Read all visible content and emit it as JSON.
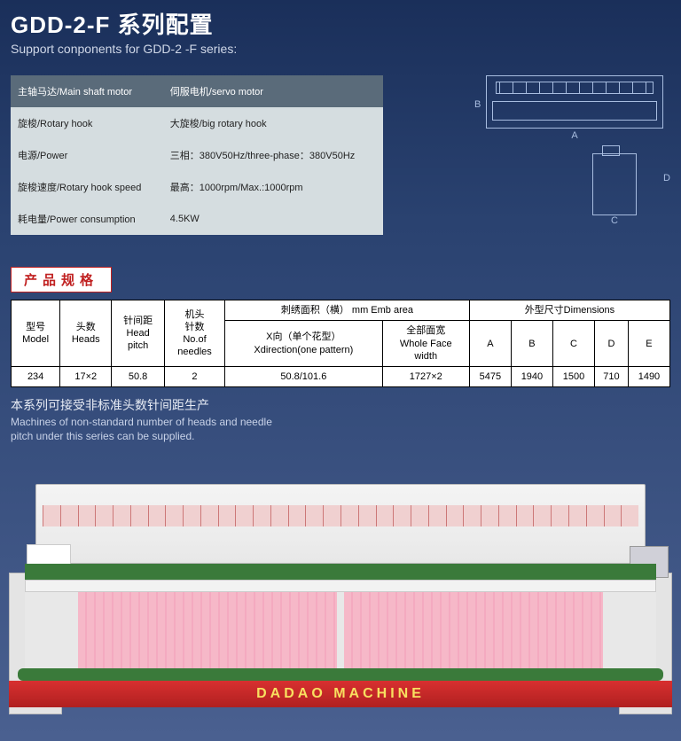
{
  "header": {
    "title_cn": "GDD-2-F 系列配置",
    "title_en": "Support  conponents for GDD-2 -F series:"
  },
  "spec": {
    "header_left": "主轴马达/Main shaft motor",
    "header_right": "伺服电机/servo motor",
    "rows": [
      {
        "l": "旋梭/Rotary hook",
        "r": "大旋梭/big rotary hook"
      },
      {
        "l": "电源/Power",
        "r": "三相：380V50Hz/three-phase：380V50Hz"
      },
      {
        "l": "旋梭速度/Rotary hook speed",
        "r": "最高：1000rpm/Max.:1000rpm"
      },
      {
        "l": "耗电量/Power consumption",
        "r": "4.5KW"
      }
    ]
  },
  "diagram": {
    "A": "A",
    "B": "B",
    "C": "C",
    "D": "D"
  },
  "section_label": "产品规格",
  "table": {
    "h_model": "型号\nModel",
    "h_heads": "头数\nHeads",
    "h_pitch": "针间距\nHead\npitch",
    "h_needles": "机头\n针数\nNo.of\nneedles",
    "h_emb": "刺绣面积（横） mm Emb area",
    "h_x": "X向（单个花型）\nXdirection(one pattern)",
    "h_whole": "全部面宽\nWhole Face\nwidth",
    "h_dim": "外型尺寸Dimensions",
    "h_a": "A",
    "h_b": "B",
    "h_c": "C",
    "h_d": "D",
    "h_e": "E",
    "row": {
      "model": "234",
      "heads": "17×2",
      "pitch": "50.8",
      "needles": "2",
      "x": "50.8/101.6",
      "whole": "1727×2",
      "a": "5475",
      "b": "1940",
      "c": "1500",
      "d": "710",
      "e": "1490"
    }
  },
  "note_cn": "本系列可接受非标准头数针间距生产",
  "note_en": "Machines of non-standard number of heads and needle\npitch under this series can be supplied.",
  "machine_brand": "DADAO MACHINE",
  "colors": {
    "bg_top": "#1a2f5a",
    "bg_bottom": "#4a6090",
    "spec_header": "#5a6b7a",
    "spec_body": "#d5dde0",
    "badge_text": "#c02020",
    "fabric": "#f6b8c8",
    "green": "#3a7a3a",
    "red_bed": "#d83030"
  }
}
